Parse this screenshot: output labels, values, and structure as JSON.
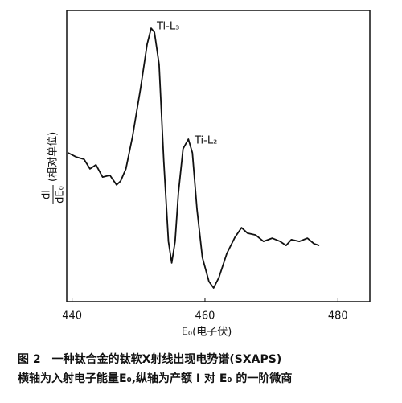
{
  "chart_data": {
    "type": "line",
    "x_label": "E₀(电子伏)",
    "y_label_numerator": "dI",
    "y_label_denominator": "dE₀",
    "y_label_unit": "(相对单位)",
    "annotations": [
      "Ti-L₃",
      "Ti-L₂"
    ],
    "caption": [
      "图 2　一种钛合金的钛软X射线出现电势谱(SXAPS)",
      "横轴为入射电子能量E₀,纵轴为产额 I 对 E₀ 的一阶微商"
    ],
    "x": [
      439.4,
      440.6,
      441.8,
      442.7,
      443.6,
      444.6,
      445.7,
      446.7,
      447.3,
      448.1,
      449.1,
      450.3,
      451.3,
      451.9,
      452.4,
      453.1,
      453.8,
      454.5,
      455.0,
      455.5,
      456.0,
      456.7,
      457.5,
      458.1,
      458.8,
      459.6,
      460.6,
      461.3,
      462.1,
      463.3,
      464.5,
      465.5,
      466.4,
      467.6,
      468.8,
      470.1,
      471.3,
      472.2,
      473.0,
      474.2,
      475.4,
      476.4,
      477.2
    ],
    "values": [
      51.1,
      49.7,
      48.9,
      45.6,
      47.0,
      42.8,
      43.4,
      40.1,
      41.4,
      45.6,
      56.6,
      73.2,
      88.4,
      93.9,
      92.5,
      81.5,
      48.3,
      20.7,
      13.3,
      20.7,
      37.3,
      52.5,
      55.8,
      51.1,
      31.8,
      15.2,
      6.9,
      4.7,
      8.3,
      16.6,
      22.1,
      25.4,
      23.5,
      22.9,
      20.7,
      21.8,
      20.7,
      19.3,
      21.3,
      20.7,
      21.8,
      19.9,
      19.3
    ],
    "color": "#111111",
    "xlim": [
      439.2,
      484.8
    ],
    "ylim": [
      0,
      100
    ],
    "xticks": [
      440,
      460,
      480
    ]
  }
}
